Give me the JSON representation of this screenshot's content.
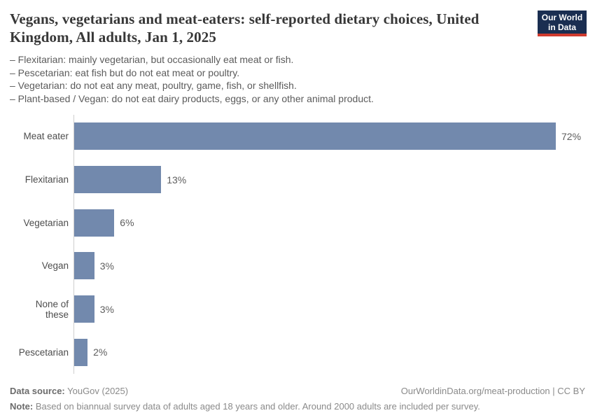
{
  "header": {
    "title": "Vegans, vegetarians and meat-eaters: self-reported dietary choices, United Kingdom, All adults, Jan 1, 2025",
    "logo": {
      "line1": "Our World",
      "line2": "in Data",
      "bg_color": "#1a2e51",
      "accent_color": "#cf3a2e"
    }
  },
  "subtitle_lines": [
    "– Flexitarian: mainly vegetarian, but occasionally eat meat or fish.",
    "– Pescetarian: eat fish but do not eat meat or poultry.",
    "– Vegetarian: do not eat any meat, poultry, game, fish, or shellfish.",
    "– Plant-based / Vegan: do not eat dairy products, eggs, or any other animal product."
  ],
  "chart_data": {
    "type": "bar",
    "orientation": "horizontal",
    "title": "Vegans, vegetarians and meat-eaters: self-reported dietary choices, United Kingdom, All adults, Jan 1, 2025",
    "categories": [
      "Meat eater",
      "Flexitarian",
      "Vegetarian",
      "Vegan",
      "None of these",
      "Pescetarian"
    ],
    "values": [
      72,
      13,
      6,
      3,
      3,
      2
    ],
    "value_labels": [
      "72%",
      "13%",
      "6%",
      "3%",
      "3%",
      "2%"
    ],
    "unit": "%",
    "xlim": [
      0,
      72
    ],
    "grid": false,
    "legend": "none",
    "bar_color": "#7289ad",
    "axis_color": "#cfcfcf"
  },
  "footer": {
    "data_source_label": "Data source:",
    "data_source_value": " YouGov (2025)",
    "attribution": "OurWorldinData.org/meat-production | CC BY",
    "note_label": "Note:",
    "note_value": " Based on biannual survey data of adults aged 18 years and older. Around 2000 adults are included per survey."
  }
}
